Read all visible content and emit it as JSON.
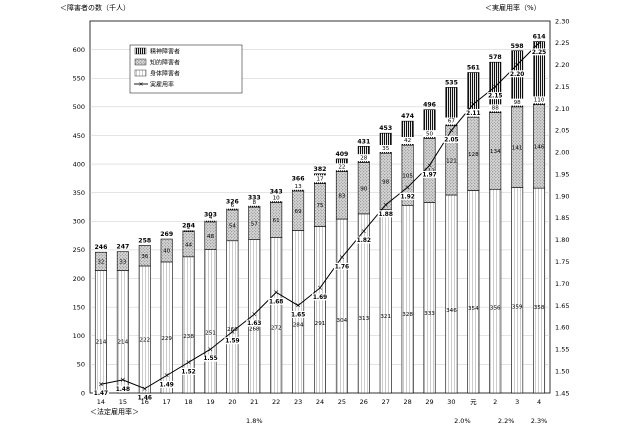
{
  "chart_data": {
    "type": "bar",
    "stacked": true,
    "ylabel_left": "＜障害者の数（千人）",
    "ylabel_right": "＜実雇用率（%）",
    "xlabel": "＜法定雇用率＞",
    "ylim_left": [
      0,
      650
    ],
    "ylim_right": [
      1.45,
      2.3
    ],
    "y_ticks_left": [
      0,
      50,
      100,
      150,
      200,
      250,
      300,
      350,
      400,
      450,
      500,
      550,
      600
    ],
    "y_ticks_right": [
      "1.45",
      "1.50",
      "1.55",
      "1.60",
      "1.65",
      "1.70",
      "1.75",
      "1.80",
      "1.85",
      "1.90",
      "1.95",
      "2.00",
      "2.05",
      "2.10",
      "2.15",
      "2.20",
      "2.25",
      "2.30"
    ],
    "categories": [
      "14",
      "15",
      "16",
      "17",
      "18",
      "19",
      "20",
      "21",
      "22",
      "23",
      "24",
      "25",
      "26",
      "27",
      "28",
      "29",
      "30",
      "元",
      "2",
      "3",
      "4"
    ],
    "series": [
      {
        "name": "身体障害者",
        "values": [
          214,
          214,
          222,
          229,
          238,
          251,
          266,
          268,
          272,
          284,
          291,
          304,
          313,
          321,
          328,
          333,
          346,
          354,
          356,
          359,
          358
        ],
        "labels": [
          "214",
          "214",
          "222",
          "229",
          "238",
          "251",
          "266",
          "268",
          "272",
          "284",
          "291",
          "304",
          "313",
          "321",
          "328",
          "333",
          "346",
          "354",
          "356",
          "359",
          "358"
        ]
      },
      {
        "name": "知的障害者",
        "values": [
          32,
          33,
          36,
          40,
          44,
          48,
          54,
          57,
          61,
          69,
          75,
          83,
          90,
          98,
          105,
          112,
          121,
          128,
          134,
          141,
          146
        ],
        "labels": [
          "32",
          "33",
          "36",
          "40",
          "44",
          "48",
          "54",
          "57",
          "61",
          "69",
          "75",
          "83",
          "90",
          "98",
          "105",
          "112",
          "121",
          "128",
          "134",
          "141",
          "146"
        ]
      },
      {
        "name": "精神障害者",
        "values": [
          0,
          0,
          0,
          0,
          2,
          4,
          6,
          8,
          10,
          13,
          17,
          22,
          28,
          35,
          42,
          50,
          67,
          78,
          88,
          98,
          110
        ],
        "labels": [
          "",
          "",
          "",
          "",
          "2",
          "4",
          "6",
          "8",
          "10",
          "13",
          "17",
          "22",
          "28",
          "35",
          "42",
          "50",
          "67",
          "78",
          "88",
          "98",
          "110"
        ]
      }
    ],
    "totals": [
      "246",
      "247",
      "258",
      "269",
      "284",
      "303",
      "326",
      "333",
      "343",
      "366",
      "382",
      "409",
      "431",
      "453",
      "474",
      "496",
      "535",
      "561",
      "578",
      "598",
      "614"
    ],
    "line": {
      "name": "実雇用率",
      "values": [
        1.47,
        1.48,
        1.46,
        1.49,
        1.52,
        1.55,
        1.59,
        1.63,
        1.68,
        1.65,
        1.69,
        1.76,
        1.82,
        1.88,
        1.92,
        1.97,
        2.05,
        2.11,
        2.15,
        2.2,
        2.25
      ],
      "labels": [
        "1.47",
        "1.48",
        "1.46",
        "1.49",
        "1.52",
        "1.55",
        "1.59",
        "1.63",
        "1.68",
        "1.65",
        "1.69",
        "1.76",
        "1.82",
        "1.88",
        "1.92",
        "1.97",
        "2.05",
        "2.11",
        "2.15",
        "2.20",
        "2.25"
      ]
    },
    "legal_rates": [
      {
        "label": "1.8%",
        "from": 0,
        "to": 14
      },
      {
        "label": "2.0%",
        "from": 15,
        "to": 18
      },
      {
        "label": "2.2%",
        "from": 18,
        "to": 19
      },
      {
        "label": "2.3%",
        "from": 20,
        "to": 20
      }
    ],
    "legend": [
      "精神障害者",
      "知的障害者",
      "身体障害者",
      "実雇用率"
    ],
    "legend_position": "top-left"
  }
}
